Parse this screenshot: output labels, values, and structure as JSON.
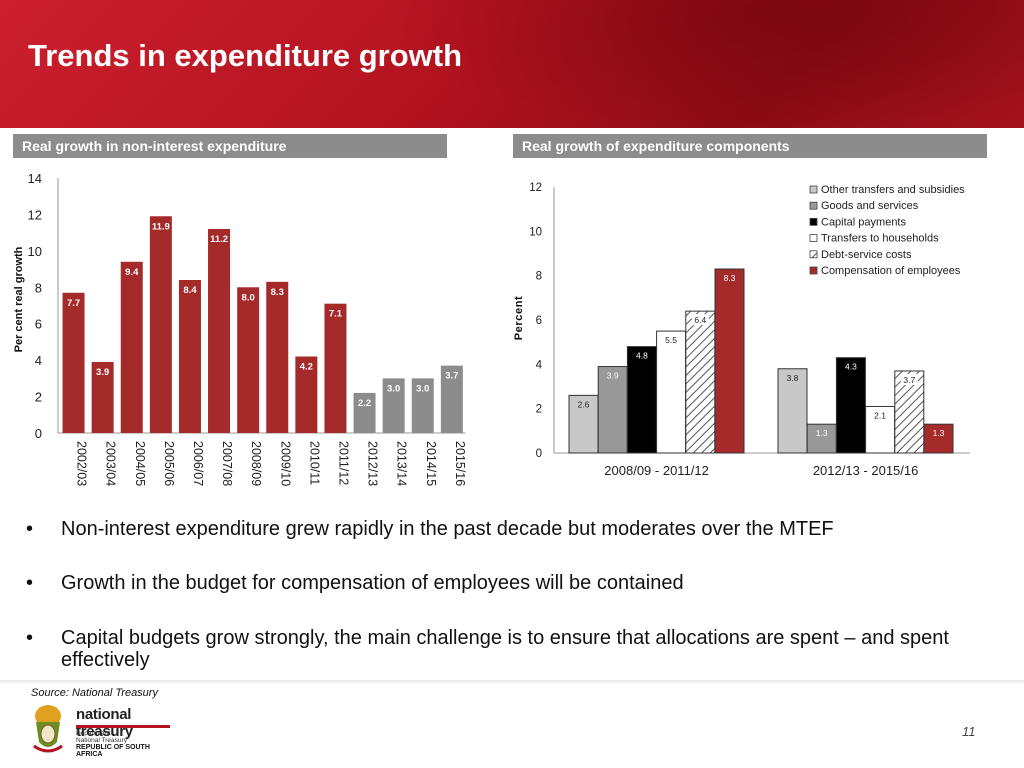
{
  "slide": {
    "title": "Trends in expenditure growth",
    "page_number": "11",
    "source": "Source: National Treasury"
  },
  "panels": {
    "left_label": "Real growth in non-interest expenditure",
    "right_label": "Real growth of expenditure components"
  },
  "bullets": [
    "Non-interest expenditure grew rapidly in the past decade but moderates over the MTEF",
    "Growth in the budget for compensation of employees will be contained",
    "Capital budgets grow strongly, the main challenge is to ensure that allocations are spent – and spent effectively"
  ],
  "bullet_symbol": "•",
  "logo": {
    "name": "national treasury",
    "line1": "Department:",
    "line2": "National Treasury",
    "line3": "REPUBLIC OF SOUTH AFRICA"
  },
  "colors": {
    "header_red": "#b3131f",
    "bar_red": "#a52a2a",
    "bar_gray": "#8c8c8c",
    "label_gray": "#8c8c8c"
  },
  "chart_data": [
    {
      "type": "bar",
      "title": "Real growth in non-interest expenditure",
      "ylabel": "Per cent real growth",
      "xlabel": "",
      "ylim": [
        0,
        14
      ],
      "yticks": [
        0,
        2,
        4,
        6,
        8,
        10,
        12,
        14
      ],
      "categories": [
        "2002/03",
        "2003/04",
        "2004/05",
        "2005/06",
        "2006/07",
        "2007/08",
        "2008/09",
        "2009/10",
        "2010/11",
        "2011/12",
        "2012/13",
        "2013/14",
        "2014/15",
        "2015/16"
      ],
      "values": [
        7.7,
        3.9,
        9.4,
        11.9,
        8.4,
        11.2,
        8.0,
        8.3,
        4.2,
        7.1,
        2.2,
        3.0,
        3.0,
        3.7
      ],
      "data_labels": [
        "7.7",
        "3.9",
        "9.4",
        "11.9",
        "8.4",
        "11.2",
        "8.0",
        "8.3",
        "4.2",
        "7.1",
        "2.2",
        "3.0",
        "3.0",
        "3.7"
      ],
      "bar_colors": [
        "#a52a2a",
        "#a52a2a",
        "#a52a2a",
        "#a52a2a",
        "#a52a2a",
        "#a52a2a",
        "#a52a2a",
        "#a52a2a",
        "#a52a2a",
        "#a52a2a",
        "#8c8c8c",
        "#8c8c8c",
        "#8c8c8c",
        "#8c8c8c"
      ],
      "grid": false
    },
    {
      "type": "bar",
      "title": "Real growth of expenditure components",
      "ylabel": "Percent",
      "xlabel": "",
      "ylim": [
        0,
        12
      ],
      "yticks": [
        0,
        2,
        4,
        6,
        8,
        10,
        12
      ],
      "categories": [
        "2008/09 - 2011/12",
        "2012/13 - 2015/16"
      ],
      "series": [
        {
          "name": "Other transfers and subsidies",
          "values": [
            2.6,
            3.8
          ],
          "fill": "#c8c8c8",
          "pattern": "solid"
        },
        {
          "name": "Goods and services",
          "values": [
            3.9,
            1.3
          ],
          "fill": "#999999",
          "pattern": "solid"
        },
        {
          "name": "Capital payments",
          "values": [
            4.8,
            4.3
          ],
          "fill": "#000000",
          "pattern": "solid"
        },
        {
          "name": "Transfers to households",
          "values": [
            5.5,
            2.1
          ],
          "fill": "#ffffff",
          "pattern": "solid"
        },
        {
          "name": "Debt-service costs",
          "values": [
            6.4,
            3.7
          ],
          "fill": "#ffffff",
          "pattern": "hatch"
        },
        {
          "name": "Compensation of employees",
          "values": [
            8.3,
            1.3
          ],
          "fill": "#a52a2a",
          "pattern": "solid"
        }
      ],
      "data_labels": [
        [
          "2.6",
          "3.9",
          "4.8",
          "5.5",
          "6.4",
          "8.3"
        ],
        [
          "3.8",
          "1.3",
          "4.3",
          "2.1",
          "3.7",
          "1.3"
        ]
      ],
      "legend_position": "top-right",
      "grid": false
    }
  ]
}
